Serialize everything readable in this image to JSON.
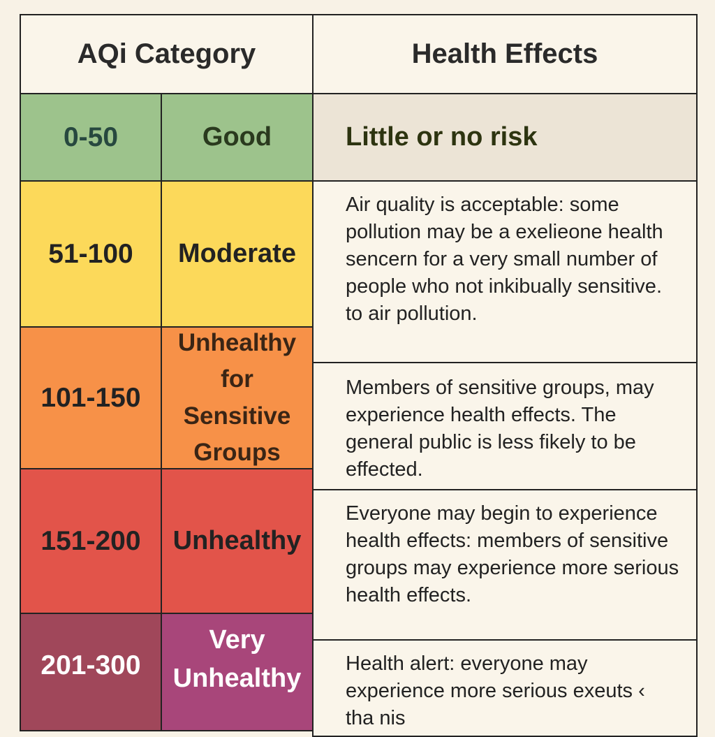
{
  "header": {
    "category": "AQi Category",
    "effects": "Health Effects"
  },
  "colors": {
    "good": "#9dc38c",
    "moderate": "#fcd95a",
    "usg": "#f79148",
    "unhealthy": "#e2544a",
    "very_unhealthy_range": "#a0475a",
    "very_unhealthy_cat": "#a8467a",
    "background": "#f8f2e6"
  },
  "rows": [
    {
      "range": "0-50",
      "category": "Good",
      "effects": "Little or no risk"
    },
    {
      "range": "51-100",
      "category": "Moderate",
      "effects": "Air quality is acceptable: some pollution may be a exelieone health sencern for a very small number of people who not inkibually sensitive. to air pollution."
    },
    {
      "range": "101-150",
      "category": "Unhealthy for Sensitive Groups",
      "effects": "Members of sensitive groups, may experience health effects. The general public is less fikely to be effected."
    },
    {
      "range": "151-200",
      "category": "Unhealthy",
      "effects": "Everyone may begin to experience health effects: members of sensitive groups may experience more serious health effects."
    },
    {
      "range": "201-300",
      "category": "Very Unhealthy",
      "effects": "Health alert: everyone may experience more serious exeuts ‹ tha nis"
    }
  ]
}
